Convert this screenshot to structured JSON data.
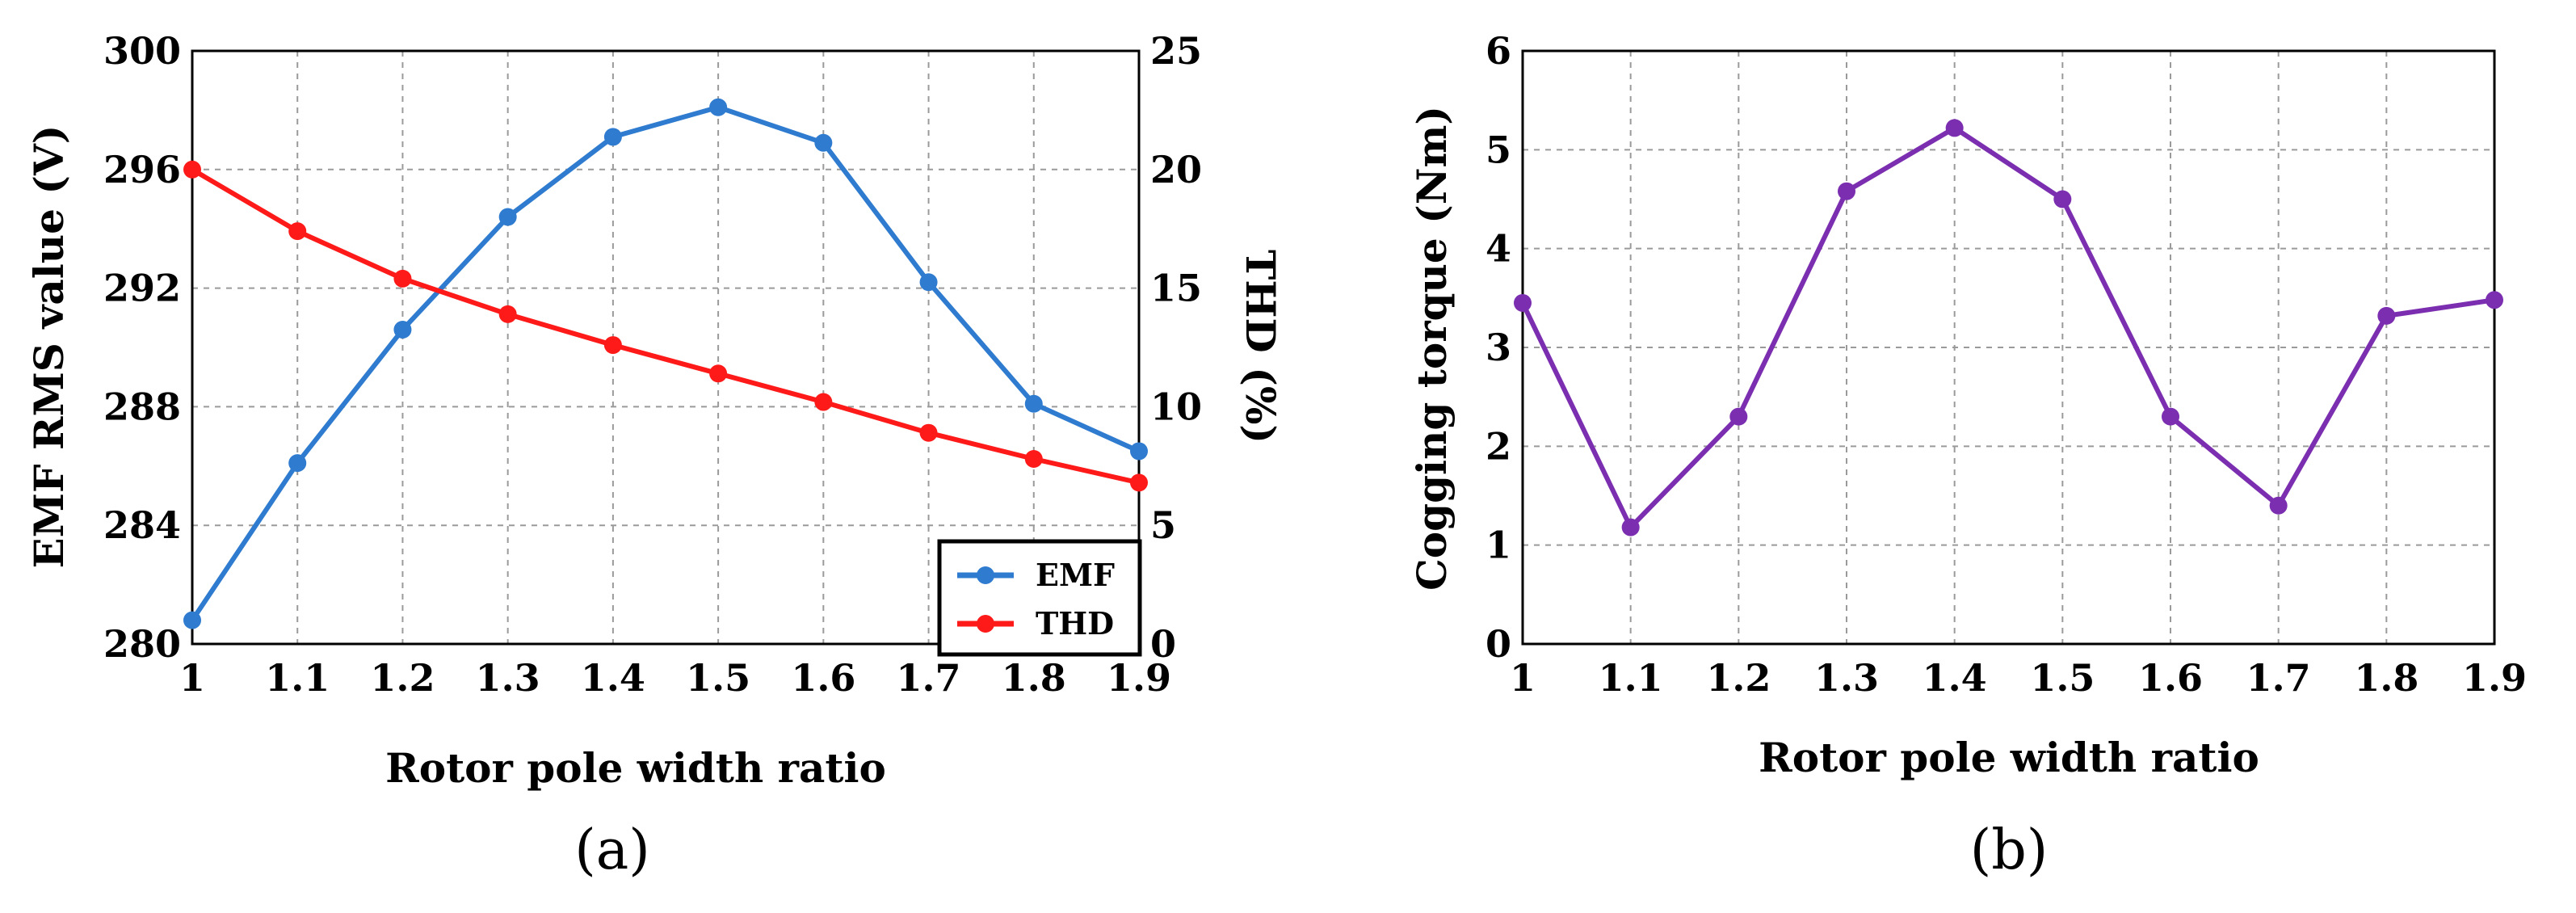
{
  "chart_data": [
    {
      "type": "line",
      "caption": "(a)",
      "xlabel": "Rotor pole width ratio",
      "ylabel": "EMF RMS value (V)",
      "y2label": "THD (%)",
      "x": [
        1,
        1.1,
        1.2,
        1.3,
        1.4,
        1.5,
        1.6,
        1.7,
        1.8,
        1.9
      ],
      "xticks": [
        "1",
        "1.1",
        "1.2",
        "1.3",
        "1.4",
        "1.5",
        "1.6",
        "1.7",
        "1.8",
        "1.9"
      ],
      "xlim": [
        1,
        1.9
      ],
      "ylim": [
        280,
        300
      ],
      "yticks": [
        "280",
        "284",
        "288",
        "292",
        "296",
        "300"
      ],
      "y2lim": [
        0,
        25
      ],
      "y2ticks": [
        "0",
        "5",
        "10",
        "15",
        "20",
        "25"
      ],
      "grid": true,
      "legend_position": "bottom-right",
      "series": [
        {
          "name": "EMF",
          "axis": "left",
          "color": "#2e7bcf",
          "values": [
            280.8,
            286.1,
            290.6,
            294.4,
            297.1,
            298.1,
            296.9,
            292.2,
            288.1,
            286.5
          ]
        },
        {
          "name": "THD",
          "axis": "right",
          "color": "#ff1a1a",
          "values": [
            20.0,
            17.4,
            15.4,
            13.9,
            12.6,
            11.4,
            10.2,
            8.9,
            7.8,
            6.8
          ]
        }
      ]
    },
    {
      "type": "line",
      "caption": "(b)",
      "xlabel": "Rotor pole width ratio",
      "ylabel": "Cogging torque (Nm)",
      "x": [
        1,
        1.1,
        1.2,
        1.3,
        1.4,
        1.5,
        1.6,
        1.7,
        1.8,
        1.9
      ],
      "xticks": [
        "1",
        "1.1",
        "1.2",
        "1.3",
        "1.4",
        "1.5",
        "1.6",
        "1.7",
        "1.8",
        "1.9"
      ],
      "xlim": [
        1,
        1.9
      ],
      "ylim": [
        0,
        6
      ],
      "yticks": [
        "0",
        "1",
        "2",
        "3",
        "4",
        "5",
        "6"
      ],
      "grid": true,
      "series": [
        {
          "name": "Cogging torque",
          "axis": "left",
          "color": "#7b2fb0",
          "values": [
            3.45,
            1.18,
            2.3,
            4.58,
            5.22,
            4.5,
            2.3,
            1.4,
            3.32,
            3.48
          ]
        }
      ]
    }
  ]
}
